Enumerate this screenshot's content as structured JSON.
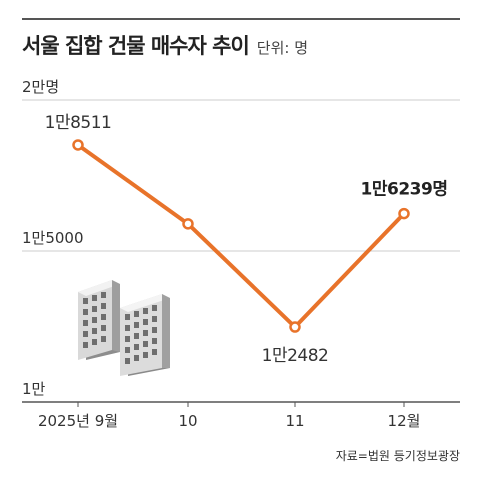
{
  "header": {
    "title": "서울 집합 건물 매수자 추이",
    "unit": "단위: 명"
  },
  "source": "자료=법원 등기정보광장",
  "icons": {
    "illustration": "office-buildings-icon"
  },
  "colors": {
    "line": "#e8732a",
    "grid": "#cccccc",
    "axis": "#555555"
  },
  "chart_data": {
    "type": "line",
    "categories": [
      "2025년 9월",
      "10",
      "11",
      "12월"
    ],
    "values": [
      18511,
      15900,
      12482,
      16239
    ],
    "ylim": [
      10000,
      20000
    ],
    "yticks": [
      {
        "value": 20000,
        "label": "2만명"
      },
      {
        "value": 15000,
        "label": "1만5000"
      },
      {
        "value": 10000,
        "label": "1만"
      }
    ],
    "data_labels": [
      {
        "index": 0,
        "text": "1만8511",
        "bold": false
      },
      {
        "index": 2,
        "text": "1만2482",
        "bold": false
      },
      {
        "index": 3,
        "text": "1만6239명",
        "bold": true
      }
    ]
  }
}
